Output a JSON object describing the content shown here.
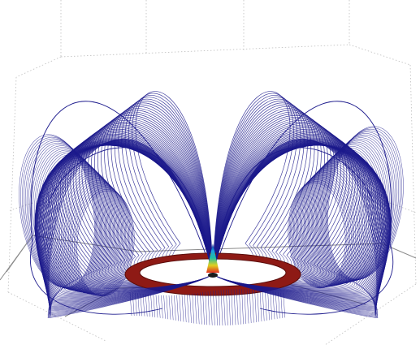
{
  "figure": {
    "description_tags": [
      "3d-field-line-plot"
    ],
    "colors": {
      "background": "#ffffff",
      "field_lines": "#1c1a8c",
      "ring_fill": "#8e1a15",
      "ring_outline": "#5a0c0a",
      "box_lines": "#8a8a8a",
      "grid_lines": "#bdbdbd",
      "cone_colors": [
        "#1c1a8c",
        "#1aa0e0",
        "#22c0a0",
        "#e0d020",
        "#e03020"
      ]
    }
  }
}
